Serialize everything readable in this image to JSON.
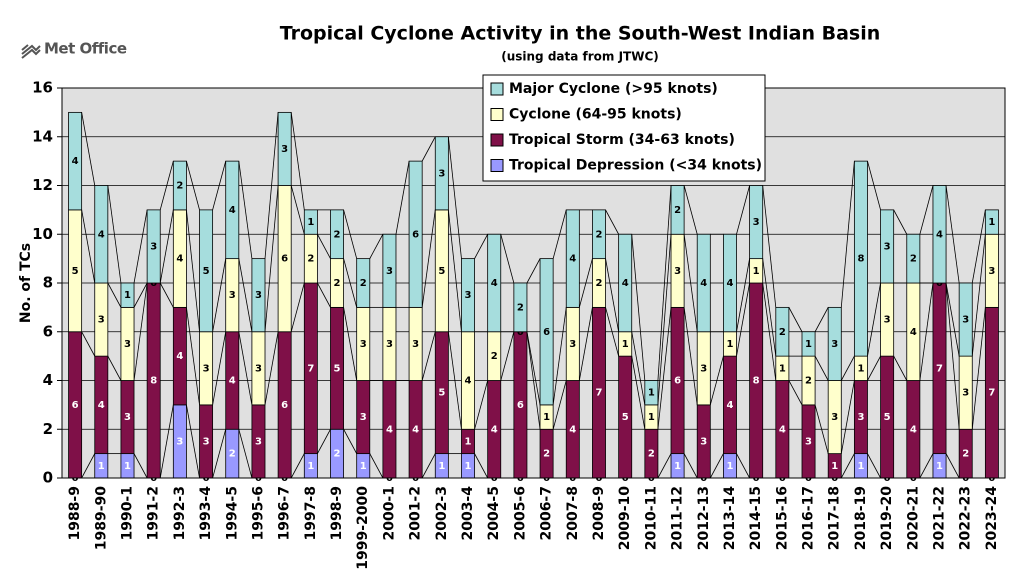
{
  "logo": "Met Office",
  "chart_data": {
    "type": "stacked-bar",
    "title": "Tropical Cyclone Activity in the South-West Indian Basin",
    "subtitle": "(using data from JTWC)",
    "y_label": "No. of TCs",
    "categories": [
      "1988-9",
      "1989-90",
      "1990-1",
      "1991-2",
      "1992-3",
      "1993-4",
      "1994-5",
      "1995-6",
      "1996-7",
      "1997-8",
      "1998-9",
      "1999-2000",
      "2000-1",
      "2001-2",
      "2002-3",
      "2003-4",
      "2004-5",
      "2005-6",
      "2006-7",
      "2007-8",
      "2008-9",
      "2009-10",
      "2010-11",
      "2011-12",
      "2012-13",
      "2013-14",
      "2014-15",
      "2015-16",
      "2016-17",
      "2017-18",
      "2018-19",
      "2019-20",
      "2020-21",
      "2021-22",
      "2022-23",
      "2023-24"
    ],
    "series": [
      {
        "name": "Tropical Depression (<34 knots)",
        "color": "#9999ff",
        "label_color": "#ffffff",
        "values": [
          0,
          1,
          1,
          0,
          3,
          0,
          2,
          0,
          0,
          1,
          2,
          1,
          0,
          0,
          1,
          1,
          0,
          0,
          0,
          0,
          0,
          0,
          0,
          1,
          0,
          1,
          0,
          0,
          0,
          0,
          1,
          0,
          0,
          1,
          0,
          0
        ]
      },
      {
        "name": "Tropical Storm (34-63 knots)",
        "color": "#7f1048",
        "label_color": "#ffffff",
        "values": [
          6,
          4,
          3,
          8,
          4,
          3,
          4,
          3,
          6,
          7,
          5,
          3,
          4,
          4,
          5,
          1,
          4,
          6,
          2,
          4,
          7,
          5,
          2,
          6,
          3,
          4,
          8,
          4,
          3,
          1,
          3,
          5,
          4,
          7,
          2,
          7
        ]
      },
      {
        "name": "Cyclone (64-95 knots)",
        "color": "#ffffcc",
        "label_color": "#000000",
        "values": [
          5,
          3,
          3,
          0,
          4,
          3,
          3,
          3,
          6,
          2,
          2,
          3,
          3,
          3,
          5,
          4,
          2,
          0,
          1,
          3,
          2,
          1,
          1,
          3,
          3,
          1,
          1,
          1,
          2,
          3,
          1,
          3,
          4,
          0,
          3,
          3
        ]
      },
      {
        "name": "Major Cyclone (>95 knots)",
        "color": "#a6dddd",
        "label_color": "#000000",
        "values": [
          4,
          4,
          1,
          3,
          2,
          5,
          4,
          3,
          3,
          1,
          2,
          2,
          3,
          6,
          3,
          3,
          4,
          2,
          6,
          4,
          2,
          4,
          1,
          2,
          4,
          4,
          3,
          2,
          1,
          3,
          8,
          3,
          2,
          4,
          3,
          1
        ]
      }
    ],
    "ylim": [
      0,
      16
    ],
    "yticks": [
      0,
      2,
      4,
      6,
      8,
      10,
      12,
      14,
      16
    ],
    "grid": true,
    "legend": "top"
  }
}
